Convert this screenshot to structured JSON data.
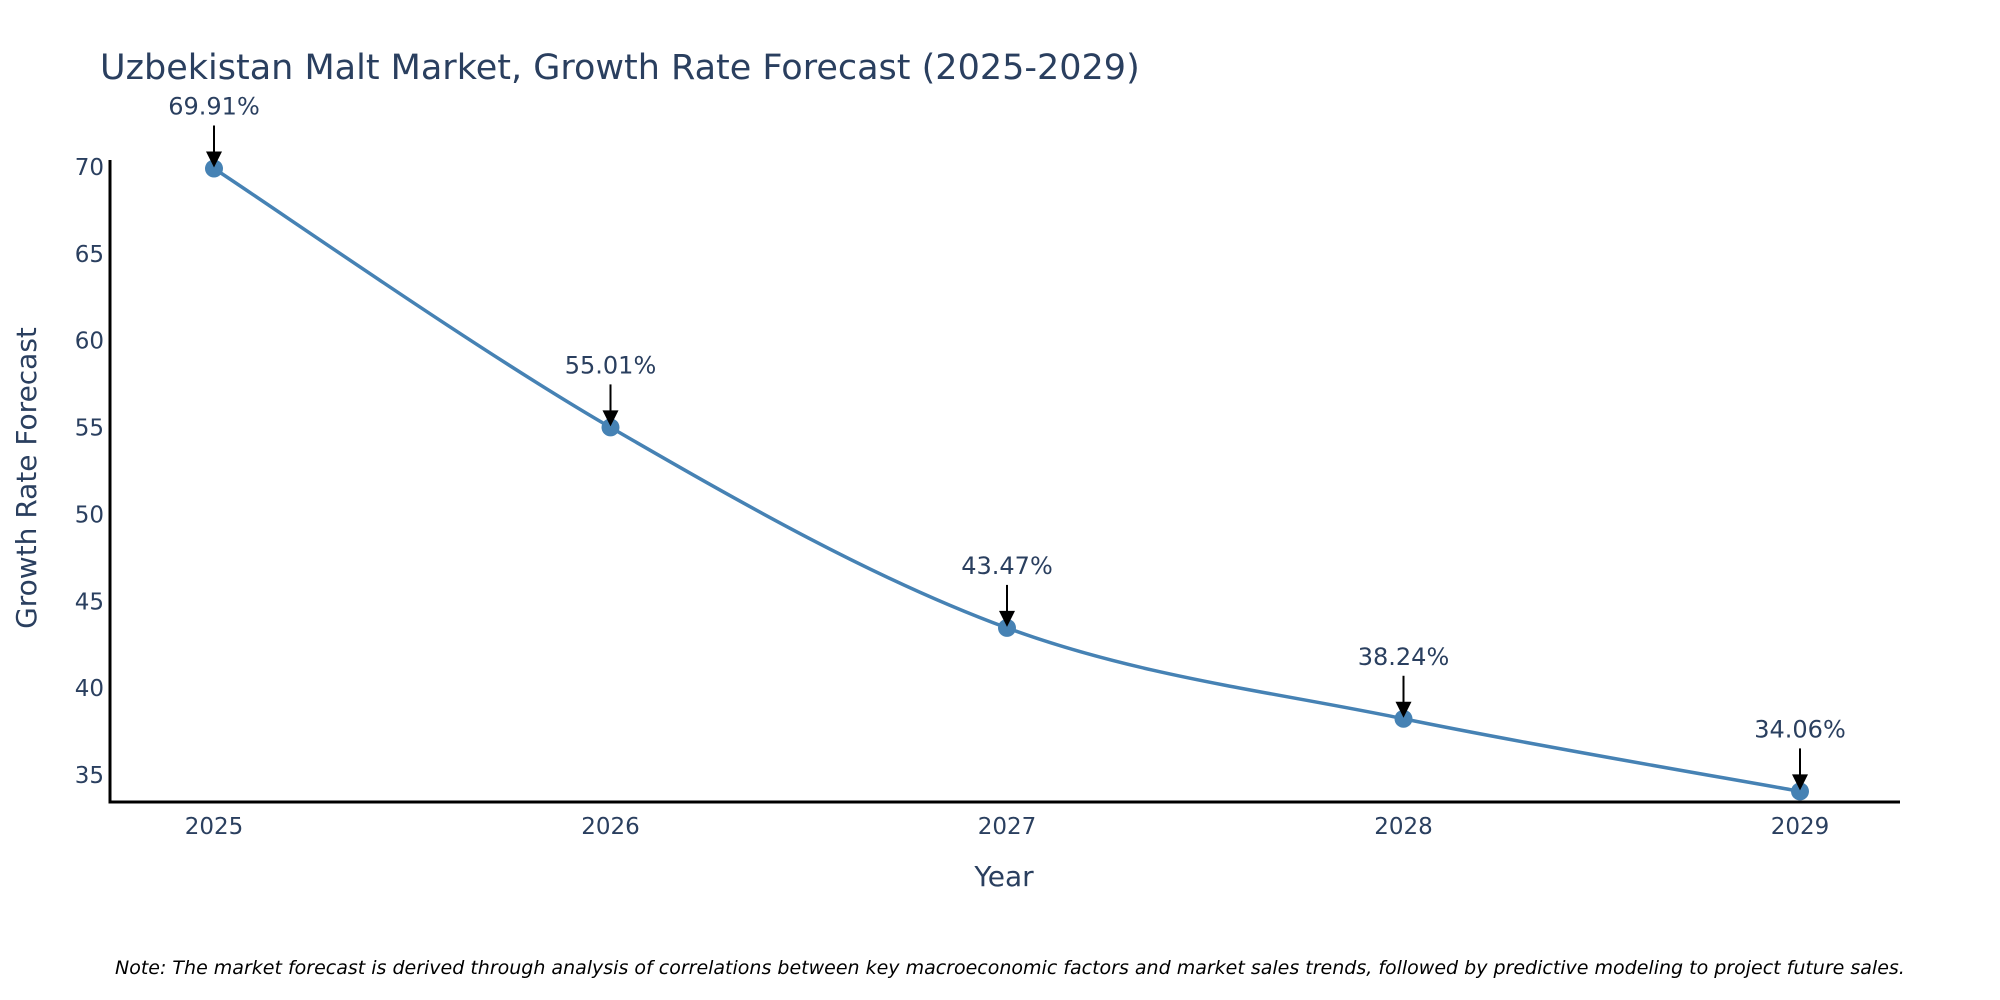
{
  "chart_data": {
    "type": "line",
    "title": "Uzbekistan Malt Market, Growth Rate Forecast (2025-2029)",
    "xlabel": "Year",
    "ylabel": "Growth Rate Forecast",
    "categories": [
      "2025",
      "2026",
      "2027",
      "2028",
      "2029"
    ],
    "series": [
      {
        "name": "Growth Rate Forecast",
        "values": [
          69.91,
          55.01,
          43.47,
          38.24,
          34.06
        ]
      }
    ],
    "data_labels": [
      "69.91%",
      "55.01%",
      "43.47%",
      "38.24%",
      "34.06%"
    ],
    "yticks": [
      35,
      40,
      45,
      50,
      55,
      60,
      65,
      70
    ],
    "ylim": [
      33.45,
      70.4
    ],
    "grid": false,
    "line_shape": "spline",
    "colors": {
      "line": "#4682b4",
      "marker": "#4682b4",
      "axis": "#000000",
      "text": "#2a3f5f",
      "arrow": "#000000"
    },
    "note": "Note: The market forecast is derived through analysis of correlations between key macroeconomic factors and market sales trends, followed by predictive modeling to project future sales."
  }
}
